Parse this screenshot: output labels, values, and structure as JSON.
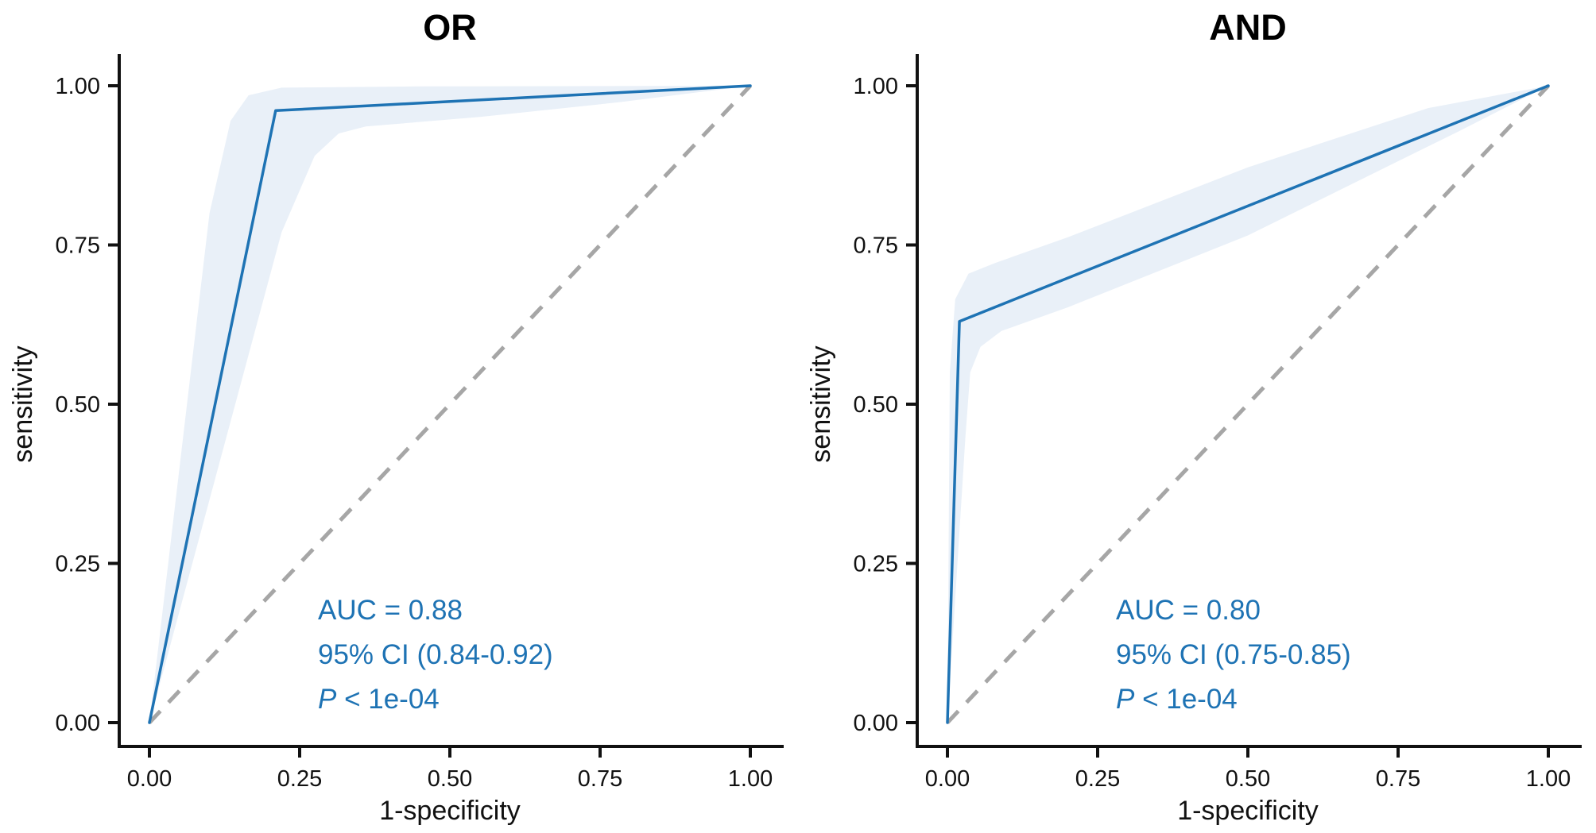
{
  "colors": {
    "roc_line": "#1e73b4",
    "ci_band": "#e9f0f8",
    "reference_dashed": "#a6a6a6",
    "annotation_text": "#1e73b4",
    "axis_text": "#111111"
  },
  "chart_data": [
    {
      "type": "line",
      "title": "OR",
      "xlabel": "1-specificity",
      "ylabel": "sensitivity",
      "xlim": [
        0,
        1
      ],
      "ylim": [
        0,
        1
      ],
      "grid": "off",
      "legend": "none",
      "x_ticks": [
        "0.00",
        "0.25",
        "0.50",
        "0.75",
        "1.00"
      ],
      "y_ticks": [
        "0.00",
        "0.25",
        "0.50",
        "0.75",
        "1.00"
      ],
      "auc": 0.88,
      "ci_95": [
        0.84,
        0.92
      ],
      "series": [
        {
          "name": "ROC curve",
          "points": [
            [
              0,
              0
            ],
            [
              0.21,
              0.961
            ],
            [
              1,
              1
            ]
          ]
        },
        {
          "name": "reference diagonal",
          "points": [
            [
              0,
              0
            ],
            [
              1,
              1
            ]
          ]
        }
      ],
      "ci_band": {
        "upper": [
          [
            0,
            0
          ],
          [
            0.1,
            0.8
          ],
          [
            0.135,
            0.945
          ],
          [
            0.165,
            0.985
          ],
          [
            0.22,
            0.997
          ],
          [
            0.45,
            0.999
          ],
          [
            1,
            1
          ]
        ],
        "lower": [
          [
            0,
            0
          ],
          [
            0.22,
            0.77
          ],
          [
            0.275,
            0.89
          ],
          [
            0.315,
            0.925
          ],
          [
            0.36,
            0.936
          ],
          [
            0.55,
            0.951
          ],
          [
            0.78,
            0.974
          ],
          [
            1,
            1
          ]
        ]
      },
      "annotation": {
        "auc_label": "AUC = 0.88",
        "ci_label": "95% CI (0.84-0.92)",
        "p_italic": "P",
        "p_rest": " < 1e-04"
      }
    },
    {
      "type": "line",
      "title": "AND",
      "xlabel": "1-specificity",
      "ylabel": "sensitivity",
      "xlim": [
        0,
        1
      ],
      "ylim": [
        0,
        1
      ],
      "grid": "off",
      "legend": "none",
      "x_ticks": [
        "0.00",
        "0.25",
        "0.50",
        "0.75",
        "1.00"
      ],
      "y_ticks": [
        "0.00",
        "0.25",
        "0.50",
        "0.75",
        "1.00"
      ],
      "auc": 0.8,
      "ci_95": [
        0.75,
        0.85
      ],
      "series": [
        {
          "name": "ROC curve",
          "points": [
            [
              0,
              0
            ],
            [
              0.02,
              0.63
            ],
            [
              1,
              1
            ]
          ]
        },
        {
          "name": "reference diagonal",
          "points": [
            [
              0,
              0
            ],
            [
              1,
              1
            ]
          ]
        }
      ],
      "ci_band": {
        "upper": [
          [
            0,
            0
          ],
          [
            0.004,
            0.55
          ],
          [
            0.013,
            0.665
          ],
          [
            0.035,
            0.705
          ],
          [
            0.08,
            0.722
          ],
          [
            0.2,
            0.762
          ],
          [
            0.5,
            0.872
          ],
          [
            0.8,
            0.965
          ],
          [
            1,
            1
          ]
        ],
        "lower": [
          [
            0,
            0
          ],
          [
            0.03,
            0.45
          ],
          [
            0.038,
            0.55
          ],
          [
            0.055,
            0.59
          ],
          [
            0.09,
            0.615
          ],
          [
            0.2,
            0.652
          ],
          [
            0.5,
            0.765
          ],
          [
            0.85,
            0.928
          ],
          [
            1,
            1
          ]
        ]
      },
      "annotation": {
        "auc_label": "AUC = 0.80",
        "ci_label": "95% CI (0.75-0.85)",
        "p_italic": "P",
        "p_rest": " < 1e-04"
      }
    }
  ]
}
